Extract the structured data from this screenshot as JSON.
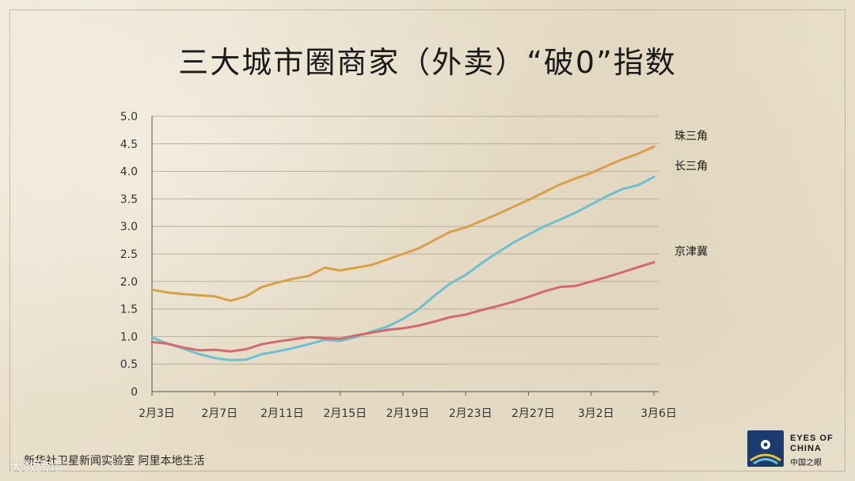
{
  "header": {
    "title": "三大城市圈商家（外卖）“破0”指数"
  },
  "footer": {
    "source": "新华社卫星新闻实验室  阿里本地生活",
    "watermark": "大数跨境",
    "logo_line1": "EYES OF",
    "logo_line2": "CHINA",
    "logo_cn": "中国之眼"
  },
  "colors": {
    "zhusanjiao": "#d9a04a",
    "changsanjiao": "#6ec0d0",
    "jingjinji": "#d46a6e",
    "grid": "#b8ae9a",
    "axis": "#555555",
    "logo_bg": "#1b3b6f"
  },
  "chart_data": {
    "type": "line",
    "title": "三大城市圈商家（外卖）“破0”指数",
    "xlabel": "",
    "ylabel": "",
    "ylim": [
      0,
      5.0
    ],
    "yticks": [
      "0",
      "0.5",
      "1.0",
      "1.5",
      "2.0",
      "2.5",
      "3.0",
      "3.5",
      "4.0",
      "4.5",
      "5.0"
    ],
    "xtick_labels": [
      "2月3日",
      "2月7日",
      "2月11日",
      "2月15日",
      "2月19日",
      "2月23日",
      "2月27日",
      "3月2日",
      "3月6日"
    ],
    "xtick_indices": [
      0,
      4,
      8,
      12,
      16,
      20,
      24,
      28,
      32
    ],
    "x": [
      "2月3日",
      "2月4日",
      "2月5日",
      "2月6日",
      "2月7日",
      "2月8日",
      "2月9日",
      "2月10日",
      "2月11日",
      "2月12日",
      "2月13日",
      "2月14日",
      "2月15日",
      "2月16日",
      "2月17日",
      "2月18日",
      "2月19日",
      "2月20日",
      "2月21日",
      "2月22日",
      "2月23日",
      "2月24日",
      "2月25日",
      "2月26日",
      "2月27日",
      "2月28日",
      "2月29日",
      "3月1日",
      "3月2日",
      "3月3日",
      "3月4日",
      "3月5日",
      "3月6日"
    ],
    "grid": true,
    "legend": "end-of-line labels",
    "series": [
      {
        "name": "珠三角",
        "color": "#d9a04a",
        "values": [
          1.85,
          1.8,
          1.77,
          1.75,
          1.73,
          1.65,
          1.73,
          1.9,
          1.98,
          2.05,
          2.1,
          2.25,
          2.2,
          2.25,
          2.3,
          2.4,
          2.5,
          2.6,
          2.75,
          2.9,
          2.98,
          3.1,
          3.22,
          3.35,
          3.48,
          3.62,
          3.76,
          3.87,
          3.97,
          4.1,
          4.22,
          4.32,
          4.45
        ]
      },
      {
        "name": "长三角",
        "color": "#6ec0d0",
        "values": [
          0.98,
          0.87,
          0.78,
          0.68,
          0.61,
          0.57,
          0.58,
          0.68,
          0.73,
          0.79,
          0.86,
          0.94,
          0.92,
          0.99,
          1.09,
          1.18,
          1.32,
          1.5,
          1.74,
          1.96,
          2.12,
          2.33,
          2.52,
          2.7,
          2.85,
          3.0,
          3.12,
          3.25,
          3.4,
          3.55,
          3.68,
          3.75,
          3.9
        ]
      },
      {
        "name": "京津冀",
        "color": "#d46a6e",
        "values": [
          0.9,
          0.87,
          0.8,
          0.75,
          0.76,
          0.73,
          0.77,
          0.86,
          0.91,
          0.95,
          0.99,
          0.97,
          0.96,
          1.02,
          1.07,
          1.12,
          1.15,
          1.2,
          1.27,
          1.35,
          1.4,
          1.48,
          1.55,
          1.63,
          1.72,
          1.82,
          1.9,
          1.92,
          2.0,
          2.08,
          2.17,
          2.26,
          2.35
        ]
      }
    ]
  }
}
